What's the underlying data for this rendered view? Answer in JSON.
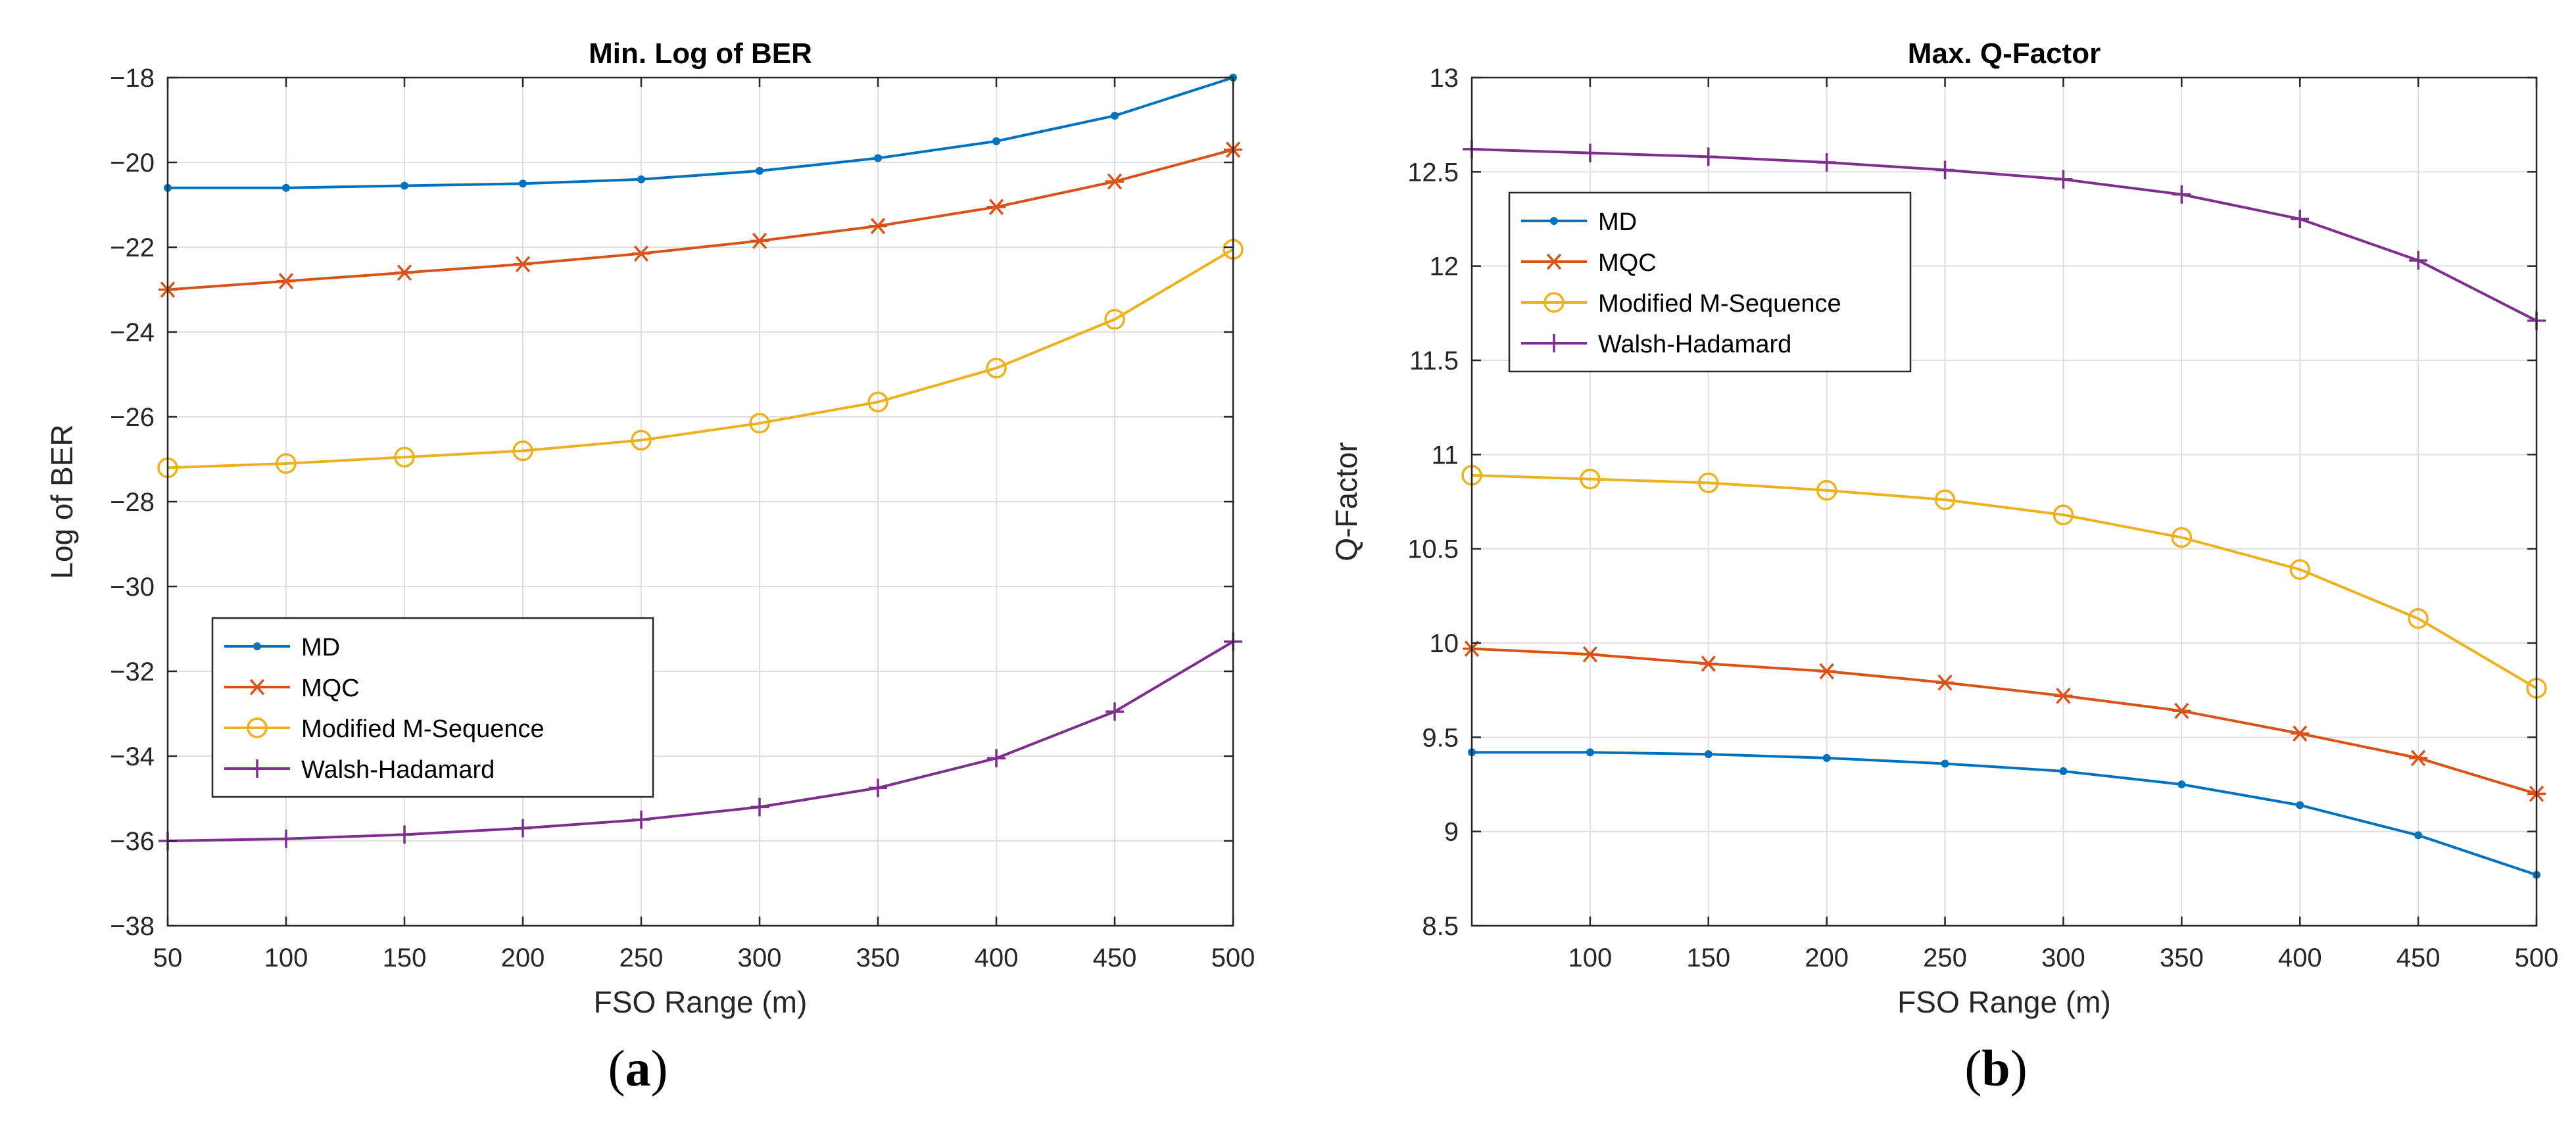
{
  "captions": {
    "a_open": "(",
    "a_letter": "a",
    "a_close": ")",
    "b_open": "(",
    "b_letter": "b",
    "b_close": ")"
  },
  "colors": {
    "MD": "#0072BD",
    "MQC": "#D95319",
    "Modified M-Sequence": "#EDB120",
    "Walsh-Hadamard": "#7E2F8E",
    "grid": "#DFDFDF",
    "axis": "#262626"
  },
  "chart_data": [
    {
      "type": "line",
      "title": "Min. Log of BER",
      "xlabel": "FSO Range (m)",
      "ylabel": "Log of BER",
      "xlim": [
        50,
        500
      ],
      "ylim": [
        -38,
        -18
      ],
      "xticks": [
        50,
        100,
        150,
        200,
        250,
        300,
        350,
        400,
        450,
        500
      ],
      "yticks": [
        -38,
        -36,
        -34,
        -32,
        -30,
        -28,
        -26,
        -24,
        -22,
        -20,
        -18
      ],
      "grid": true,
      "legend_position": "lower-left",
      "x": [
        50,
        100,
        150,
        200,
        250,
        300,
        350,
        400,
        450,
        500
      ],
      "series": [
        {
          "name": "MD",
          "marker": "dot",
          "values": [
            -20.6,
            -20.6,
            -20.55,
            -20.5,
            -20.4,
            -20.2,
            -19.9,
            -19.5,
            -18.9,
            -18.0
          ]
        },
        {
          "name": "MQC",
          "marker": "star",
          "values": [
            -23.0,
            -22.8,
            -22.6,
            -22.4,
            -22.15,
            -21.85,
            -21.5,
            -21.05,
            -20.45,
            -19.7
          ]
        },
        {
          "name": "Modified M-Sequence",
          "marker": "circle",
          "values": [
            -27.2,
            -27.1,
            -26.95,
            -26.8,
            -26.55,
            -26.15,
            -25.65,
            -24.85,
            -23.7,
            -22.05
          ]
        },
        {
          "name": "Walsh-Hadamard",
          "marker": "plus",
          "values": [
            -36.0,
            -35.95,
            -35.85,
            -35.7,
            -35.5,
            -35.2,
            -34.75,
            -34.05,
            -32.95,
            -31.3
          ]
        }
      ]
    },
    {
      "type": "line",
      "title": "Max. Q-Factor",
      "xlabel": "FSO Range (m)",
      "ylabel": "Q-Factor",
      "xlim": [
        50,
        500
      ],
      "ylim": [
        8.5,
        13
      ],
      "xticks": [
        100,
        150,
        200,
        250,
        300,
        350,
        400,
        450,
        500
      ],
      "yticks": [
        8.5,
        9,
        9.5,
        10,
        10.5,
        11,
        11.5,
        12,
        12.5,
        13
      ],
      "grid": true,
      "legend_position": "upper-left",
      "x": [
        50,
        100,
        150,
        200,
        250,
        300,
        350,
        400,
        450,
        500
      ],
      "series": [
        {
          "name": "MD",
          "marker": "dot",
          "values": [
            9.42,
            9.42,
            9.41,
            9.39,
            9.36,
            9.32,
            9.25,
            9.14,
            8.98,
            8.77
          ]
        },
        {
          "name": "MQC",
          "marker": "star",
          "values": [
            9.97,
            9.94,
            9.89,
            9.85,
            9.79,
            9.72,
            9.64,
            9.52,
            9.39,
            9.2
          ]
        },
        {
          "name": "Modified M-Sequence",
          "marker": "circle",
          "values": [
            10.89,
            10.87,
            10.85,
            10.81,
            10.76,
            10.68,
            10.56,
            10.39,
            10.13,
            9.76
          ]
        },
        {
          "name": "Walsh-Hadamard",
          "marker": "plus",
          "values": [
            12.62,
            12.6,
            12.58,
            12.55,
            12.51,
            12.46,
            12.38,
            12.25,
            12.03,
            11.71
          ]
        }
      ]
    }
  ]
}
